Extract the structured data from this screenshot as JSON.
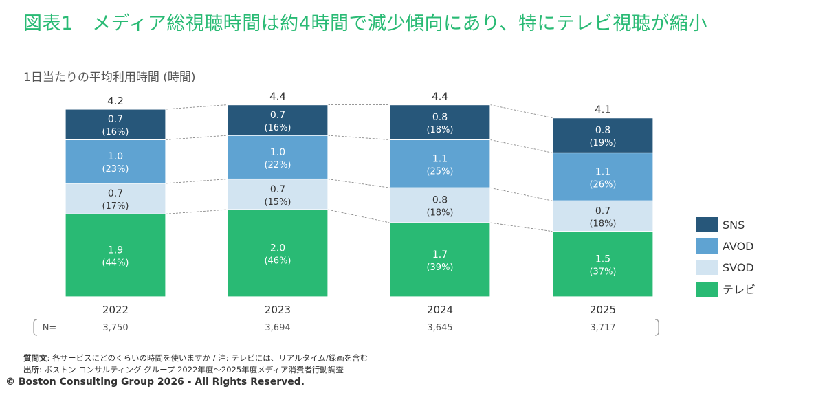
{
  "title": "図表1　メディア総視聴時間は約4時間で減少傾向にあり、特にテレビ視聴が縮小",
  "subtitle": "1日当たりの平均利用時間 (時間)",
  "chart_data": {
    "type": "bar",
    "stacked": true,
    "ylabel": "1日当たりの平均利用時間 (時間)",
    "categories": [
      "2022",
      "2023",
      "2024",
      "2025"
    ],
    "totals": [
      4.2,
      4.4,
      4.4,
      4.1
    ],
    "totals_labels": [
      "4.2",
      "4.4",
      "4.4",
      "4.1"
    ],
    "series": [
      {
        "name": "テレビ",
        "color": "#29ba74",
        "values": [
          1.9,
          2.0,
          1.7,
          1.5
        ],
        "labels": [
          "1.9",
          "2.0",
          "1.7",
          "1.5"
        ],
        "shares": [
          "(44%)",
          "(46%)",
          "(39%)",
          "(37%)"
        ]
      },
      {
        "name": "SVOD",
        "color": "#d2e4f1",
        "values": [
          0.7,
          0.7,
          0.8,
          0.7
        ],
        "labels": [
          "0.7",
          "0.7",
          "0.8",
          "0.7"
        ],
        "shares": [
          "(17%)",
          "(15%)",
          "(18%)",
          "(18%)"
        ]
      },
      {
        "name": "AVOD",
        "color": "#5fa3d2",
        "values": [
          1.0,
          1.0,
          1.1,
          1.1
        ],
        "labels": [
          "1.0",
          "1.0",
          "1.1",
          "1.1"
        ],
        "shares": [
          "(23%)",
          "(22%)",
          "(25%)",
          "(26%)"
        ]
      },
      {
        "name": "SNS",
        "color": "#27577a",
        "values": [
          0.7,
          0.7,
          0.8,
          0.8
        ],
        "labels": [
          "0.7",
          "0.7",
          "0.8",
          "0.8"
        ],
        "shares": [
          "(16%)",
          "(16%)",
          "(18%)",
          "(19%)"
        ]
      }
    ],
    "legend": {
      "position": "right",
      "items": [
        "SNS",
        "AVOD",
        "SVOD",
        "テレビ"
      ]
    },
    "sample": {
      "label": "N=",
      "values": [
        "3,750",
        "3,694",
        "3,645",
        "3,717"
      ]
    },
    "ylim": [
      0,
      4.4
    ]
  },
  "footnotes": {
    "question_label": "質問文",
    "question_text": ": 各サービスにどのくらいの時間を使いますか / 注: テレビには、リアルタイム/録画を含む",
    "source_label": "出所",
    "source_text": ": ボストン コンサルティング グループ 2022年度～2025年度メディア消費者行動調査"
  },
  "copyright": "© Boston Consulting Group 2026 - All Rights Reserved."
}
